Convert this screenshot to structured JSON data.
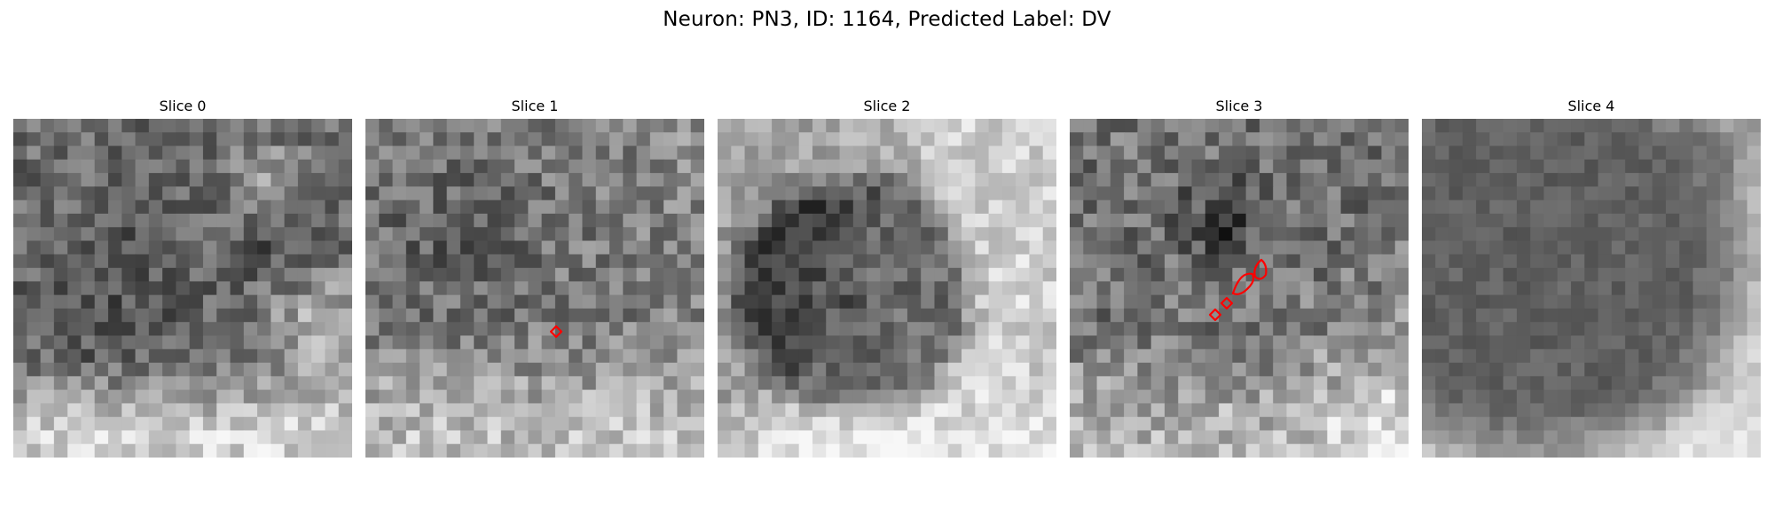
{
  "figure": {
    "title": "Neuron: PN3, ID: 1164, Predicted Label: DV"
  },
  "panels": [
    {
      "title": "Slice 0"
    },
    {
      "title": "Slice 1"
    },
    {
      "title": "Slice 2"
    },
    {
      "title": "Slice 3"
    },
    {
      "title": "Slice 4"
    }
  ],
  "colors": {
    "background": "#ffffff",
    "annotation": "#ff0000",
    "image_colormap": "grayscale"
  }
}
